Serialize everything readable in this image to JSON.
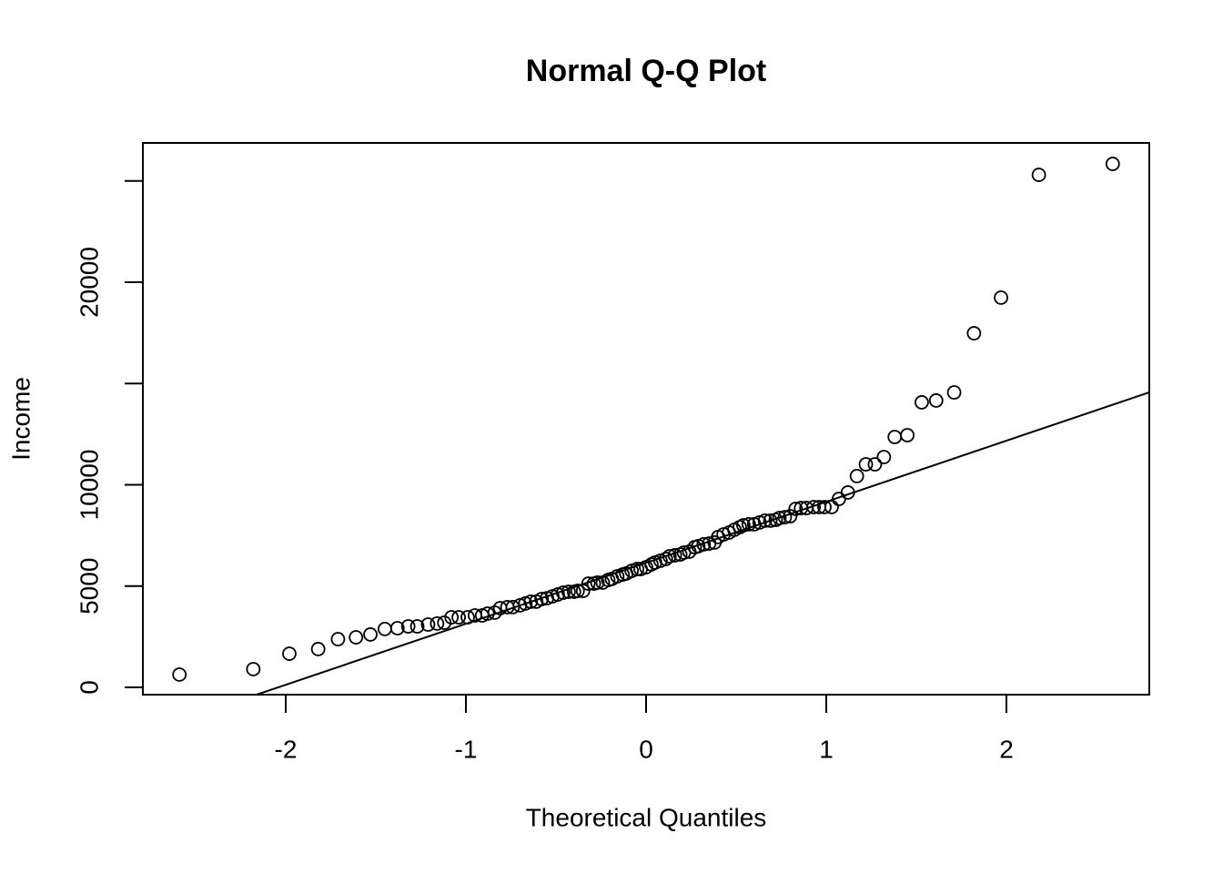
{
  "chart_data": {
    "type": "scatter",
    "title": "Normal Q-Q Plot",
    "x_label": "Theoretical Quantiles",
    "y_label": "Income",
    "x": [
      -2.59,
      -2.18,
      -1.98,
      -1.82,
      -1.71,
      -1.61,
      -1.53,
      -1.45,
      -1.38,
      -1.32,
      -1.27,
      -1.21,
      -1.16,
      -1.12,
      -1.08,
      -1.04,
      -0.99,
      -0.95,
      -0.91,
      -0.88,
      -0.84,
      -0.81,
      -0.77,
      -0.74,
      -0.7,
      -0.67,
      -0.64,
      -0.61,
      -0.58,
      -0.55,
      -0.52,
      -0.49,
      -0.46,
      -0.43,
      -0.4,
      -0.38,
      -0.35,
      -0.32,
      -0.29,
      -0.27,
      -0.24,
      -0.21,
      -0.19,
      -0.16,
      -0.13,
      -0.11,
      -0.08,
      -0.05,
      -0.03,
      0,
      0.03,
      0.05,
      0.08,
      0.11,
      0.13,
      0.16,
      0.19,
      0.21,
      0.24,
      0.27,
      0.29,
      0.32,
      0.35,
      0.38,
      0.4,
      0.43,
      0.46,
      0.49,
      0.52,
      0.54,
      0.57,
      0.6,
      0.63,
      0.66,
      0.69,
      0.72,
      0.74,
      0.77,
      0.8,
      0.83,
      0.86,
      0.89,
      0.93,
      0.96,
      0.99,
      1.03,
      1.07,
      1.12,
      1.17,
      1.22,
      1.27,
      1.32,
      1.38,
      1.45,
      1.53,
      1.61,
      1.71,
      1.82,
      1.97,
      2.18,
      2.59
    ],
    "values": [
      630,
      900,
      1660,
      1890,
      2380,
      2470,
      2610,
      2880,
      2920,
      3010,
      3010,
      3100,
      3150,
      3190,
      3460,
      3460,
      3460,
      3550,
      3550,
      3640,
      3690,
      3910,
      3960,
      3960,
      4050,
      4140,
      4230,
      4230,
      4360,
      4400,
      4490,
      4580,
      4670,
      4720,
      4720,
      4760,
      4760,
      5120,
      5120,
      5170,
      5170,
      5300,
      5350,
      5480,
      5570,
      5620,
      5750,
      5840,
      5840,
      5930,
      6070,
      6160,
      6250,
      6340,
      6470,
      6520,
      6560,
      6650,
      6700,
      6920,
      6970,
      7060,
      7100,
      7150,
      7420,
      7550,
      7640,
      7780,
      7910,
      8000,
      8050,
      8050,
      8140,
      8230,
      8230,
      8270,
      8360,
      8400,
      8450,
      8810,
      8850,
      8850,
      8900,
      8900,
      8900,
      8900,
      9300,
      9620,
      10430,
      11010,
      11010,
      11370,
      12360,
      12450,
      14070,
      14160,
      14560,
      17480,
      19240,
      25300,
      25840
    ],
    "reference_line": {
      "intercept": 6151,
      "slope": 3012
    },
    "xlim": [
      -2.793,
      2.793
    ],
    "ylim": [
      -360,
      26876
    ],
    "xticks": [
      -2,
      -1,
      0,
      1,
      2
    ],
    "yticks": [
      0,
      5000,
      10000,
      20000
    ],
    "yticks_unlabeled": [
      15000,
      25000
    ]
  }
}
